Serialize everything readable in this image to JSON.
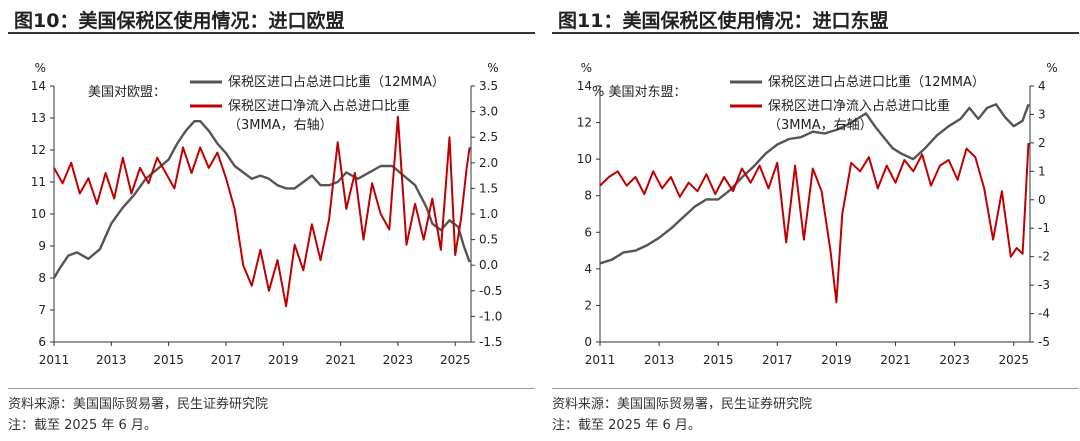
{
  "panels": [
    {
      "title": "图10：美国保税区使用情况：进口欧盟",
      "source": "资料来源：美国国际贸易署，民生证券研究院",
      "note": "注：截至 2025 年 6 月。",
      "chart_data": {
        "type": "line",
        "annotation": "美国对欧盟：",
        "xlabel": "",
        "ylabel_left": "%",
        "ylabel_right": "%",
        "x_ticks": [
          "2011",
          "2013",
          "2015",
          "2017",
          "2019",
          "2021",
          "2023",
          "2025"
        ],
        "x_range": [
          2011.0,
          2025.55
        ],
        "ylim_left": [
          6,
          14
        ],
        "yticks_left": [
          "14",
          "13",
          "12",
          "11",
          "10",
          "9",
          "8",
          "7",
          "6"
        ],
        "ylim_right": [
          -1.5,
          3.5
        ],
        "yticks_right": [
          "3.5",
          "3.0",
          "2.5",
          "2.0",
          "1.5",
          "1.0",
          "0.5",
          "0.0",
          "-0.5",
          "-1.0",
          "-1.5"
        ],
        "legend": "top",
        "series": [
          {
            "name": "保税区进口占总进口比重（12MMA）",
            "axis": "left",
            "color": "#555555",
            "x": [
              2011.0,
              2011.2,
              2011.5,
              2011.8,
              2012.2,
              2012.6,
              2013.0,
              2013.4,
              2013.8,
              2014.2,
              2014.6,
              2015.0,
              2015.3,
              2015.6,
              2015.9,
              2016.1,
              2016.4,
              2016.7,
              2017.0,
              2017.3,
              2017.6,
              2017.9,
              2018.2,
              2018.5,
              2018.8,
              2019.1,
              2019.4,
              2019.7,
              2020.0,
              2020.3,
              2020.6,
              2020.9,
              2021.2,
              2021.6,
              2022.0,
              2022.4,
              2022.8,
              2023.2,
              2023.6,
              2024.0,
              2024.2,
              2024.5,
              2024.8,
              2025.1,
              2025.3,
              2025.5
            ],
            "y": [
              8.0,
              8.3,
              8.7,
              8.8,
              8.6,
              8.9,
              9.7,
              10.2,
              10.6,
              11.1,
              11.4,
              11.7,
              12.2,
              12.6,
              12.9,
              12.9,
              12.6,
              12.2,
              11.9,
              11.5,
              11.3,
              11.1,
              11.2,
              11.1,
              10.9,
              10.8,
              10.8,
              11.0,
              11.2,
              10.9,
              10.9,
              11.0,
              11.3,
              11.1,
              11.3,
              11.5,
              11.5,
              11.2,
              10.9,
              10.2,
              9.7,
              9.5,
              9.8,
              9.6,
              9.0,
              8.5
            ]
          },
          {
            "name": "保税区进口净流入占总进口比重（3MMA，右轴）",
            "axis": "right",
            "color": "#c00000",
            "x": [
              2011.0,
              2011.3,
              2011.6,
              2011.9,
              2012.2,
              2012.5,
              2012.8,
              2013.1,
              2013.4,
              2013.7,
              2014.0,
              2014.3,
              2014.6,
              2014.9,
              2015.2,
              2015.5,
              2015.8,
              2016.1,
              2016.4,
              2016.7,
              2017.0,
              2017.3,
              2017.6,
              2017.9,
              2018.2,
              2018.5,
              2018.8,
              2019.1,
              2019.4,
              2019.7,
              2020.0,
              2020.3,
              2020.6,
              2020.9,
              2021.2,
              2021.5,
              2021.8,
              2022.1,
              2022.4,
              2022.7,
              2023.0,
              2023.3,
              2023.6,
              2023.9,
              2024.2,
              2024.5,
              2024.8,
              2025.0,
              2025.2,
              2025.4,
              2025.5
            ],
            "y": [
              1.9,
              1.6,
              2.0,
              1.4,
              1.7,
              1.2,
              1.8,
              1.3,
              2.1,
              1.4,
              1.9,
              1.6,
              2.1,
              1.8,
              1.5,
              2.3,
              1.8,
              2.3,
              1.9,
              2.2,
              1.7,
              1.1,
              0.0,
              -0.4,
              0.3,
              -0.5,
              0.1,
              -0.8,
              0.4,
              -0.1,
              0.8,
              0.1,
              0.9,
              2.4,
              1.1,
              1.8,
              0.5,
              1.6,
              1.0,
              0.7,
              2.9,
              0.4,
              1.2,
              0.5,
              1.3,
              0.3,
              2.5,
              0.2,
              0.9,
              1.9,
              2.3
            ]
          }
        ]
      }
    },
    {
      "title": "图11：美国保税区使用情况：进口东盟",
      "source": "资料来源：美国国际贸易署，民生证券研究院",
      "note": "注：截至 2025 年 6 月。",
      "chart_data": {
        "type": "line",
        "annotation": "% 美国对东盟：",
        "xlabel": "",
        "ylabel_left": "%",
        "ylabel_right": "%",
        "x_ticks": [
          "2011",
          "2013",
          "2015",
          "2017",
          "2019",
          "2021",
          "2023",
          "2025"
        ],
        "x_range": [
          2011.0,
          2025.55
        ],
        "ylim_left": [
          0,
          14
        ],
        "yticks_left": [
          "14",
          "12",
          "10",
          "8",
          "6",
          "4",
          "2",
          "0"
        ],
        "ylim_right": [
          -5,
          4
        ],
        "yticks_right": [
          "4",
          "3",
          "2",
          "1",
          "0",
          "-1",
          "-2",
          "-3",
          "-4",
          "-5"
        ],
        "legend": "top",
        "series": [
          {
            "name": "保税区进口占总进口比重（12MMA）",
            "axis": "left",
            "color": "#555555",
            "x": [
              2011.0,
              2011.4,
              2011.8,
              2012.2,
              2012.6,
              2013.0,
              2013.4,
              2013.8,
              2014.2,
              2014.6,
              2015.0,
              2015.4,
              2015.8,
              2016.2,
              2016.6,
              2017.0,
              2017.4,
              2017.8,
              2018.2,
              2018.6,
              2019.0,
              2019.4,
              2019.7,
              2020.0,
              2020.3,
              2020.6,
              2020.9,
              2021.2,
              2021.6,
              2022.0,
              2022.4,
              2022.8,
              2023.2,
              2023.5,
              2023.8,
              2024.1,
              2024.4,
              2024.7,
              2025.0,
              2025.3,
              2025.5
            ],
            "y": [
              4.3,
              4.5,
              4.9,
              5.0,
              5.3,
              5.7,
              6.2,
              6.8,
              7.4,
              7.8,
              7.8,
              8.3,
              9.0,
              9.6,
              10.3,
              10.8,
              11.1,
              11.2,
              11.5,
              11.4,
              11.6,
              11.9,
              12.2,
              12.5,
              11.8,
              11.2,
              10.6,
              10.3,
              10.0,
              10.6,
              11.3,
              11.8,
              12.2,
              12.8,
              12.2,
              12.8,
              13.0,
              12.3,
              11.8,
              12.1,
              13.0
            ]
          },
          {
            "name": "保税区进口净流入占总进口比重（3MMA，右轴）",
            "axis": "right",
            "color": "#c00000",
            "x": [
              2011.0,
              2011.3,
              2011.6,
              2011.9,
              2012.2,
              2012.5,
              2012.8,
              2013.1,
              2013.4,
              2013.7,
              2014.0,
              2014.3,
              2014.6,
              2014.9,
              2015.2,
              2015.5,
              2015.8,
              2016.1,
              2016.4,
              2016.7,
              2017.0,
              2017.3,
              2017.6,
              2017.9,
              2018.2,
              2018.5,
              2018.8,
              2019.0,
              2019.2,
              2019.5,
              2019.8,
              2020.1,
              2020.4,
              2020.7,
              2021.0,
              2021.3,
              2021.6,
              2021.9,
              2022.2,
              2022.5,
              2022.8,
              2023.1,
              2023.4,
              2023.7,
              2024.0,
              2024.3,
              2024.6,
              2024.9,
              2025.1,
              2025.3,
              2025.5
            ],
            "y": [
              0.5,
              0.8,
              1.0,
              0.5,
              0.8,
              0.2,
              1.0,
              0.4,
              0.8,
              0.1,
              0.6,
              0.3,
              0.9,
              0.2,
              0.8,
              0.3,
              1.1,
              0.6,
              1.2,
              0.4,
              1.3,
              -1.5,
              1.2,
              -1.4,
              1.1,
              0.3,
              -1.8,
              -3.6,
              -0.5,
              1.3,
              1.0,
              1.5,
              0.4,
              1.2,
              0.6,
              1.4,
              1.0,
              1.6,
              0.5,
              1.2,
              1.4,
              0.7,
              1.8,
              1.5,
              0.4,
              -1.4,
              0.3,
              -2.0,
              -1.7,
              -1.9,
              2.0
            ]
          }
        ]
      }
    }
  ]
}
